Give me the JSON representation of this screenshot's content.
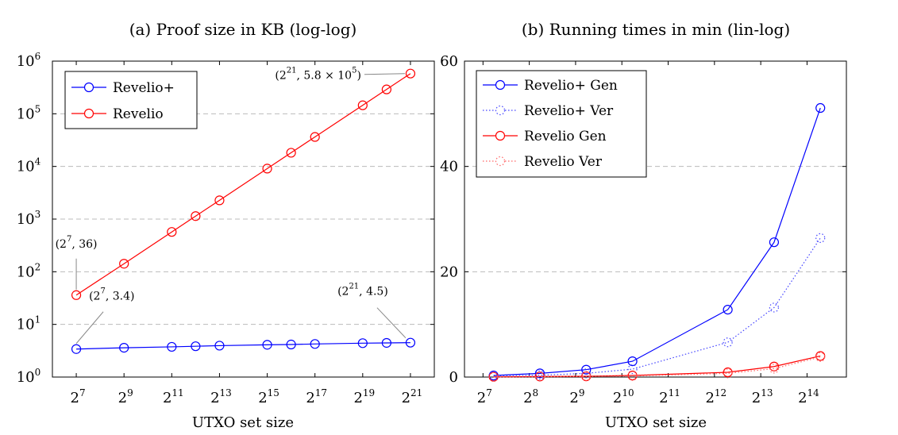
{
  "chart_data": [
    {
      "type": "line",
      "title": "(a) Proof size in KB (log-log)",
      "xlabel": "UTXO set size",
      "x_scale": "log2",
      "y_scale": "log10",
      "xlim_exp": [
        6,
        22
      ],
      "ylim": [
        1,
        1000000
      ],
      "grid": "horizontal dashed",
      "legend_position": "top-left",
      "x_ticks": [
        {
          "base": "2",
          "exp": "7",
          "value": 128
        },
        {
          "base": "2",
          "exp": "9",
          "value": 512
        },
        {
          "base": "2",
          "exp": "11",
          "value": 2048
        },
        {
          "base": "2",
          "exp": "13",
          "value": 8192
        },
        {
          "base": "2",
          "exp": "15",
          "value": 32768
        },
        {
          "base": "2",
          "exp": "17",
          "value": 131072
        },
        {
          "base": "2",
          "exp": "19",
          "value": 524288
        },
        {
          "base": "2",
          "exp": "21",
          "value": 2097152
        }
      ],
      "y_ticks": [
        {
          "base": "10",
          "exp": "0",
          "value": 1
        },
        {
          "base": "10",
          "exp": "1",
          "value": 10
        },
        {
          "base": "10",
          "exp": "2",
          "value": 100
        },
        {
          "base": "10",
          "exp": "3",
          "value": 1000
        },
        {
          "base": "10",
          "exp": "4",
          "value": 10000
        },
        {
          "base": "10",
          "exp": "5",
          "value": 100000
        },
        {
          "base": "10",
          "exp": "6",
          "value": 1000000
        }
      ],
      "series": [
        {
          "name": "Revelio+",
          "color": "#0000ff",
          "style": "solid",
          "x": [
            128,
            512,
            2048,
            4096,
            8192,
            32768,
            65536,
            131072,
            524288,
            1048576,
            2097152
          ],
          "y": [
            3.4,
            3.6,
            3.75,
            3.85,
            3.95,
            4.1,
            4.15,
            4.25,
            4.4,
            4.45,
            4.5
          ]
        },
        {
          "name": "Revelio",
          "color": "#ff0000",
          "style": "solid",
          "x": [
            128,
            512,
            2048,
            4096,
            8192,
            32768,
            65536,
            131072,
            524288,
            1048576,
            2097152
          ],
          "y": [
            36,
            142,
            570,
            1140,
            2270,
            9100,
            18200,
            36300,
            145000,
            290000,
            580000
          ]
        }
      ],
      "annotations": [
        {
          "id": "a1",
          "base": "(2",
          "exp": "7",
          "rest": ", 36)"
        },
        {
          "id": "a2",
          "base": "(2",
          "exp": "7",
          "rest": ", 3.4)"
        },
        {
          "id": "a3",
          "base": "(2",
          "exp": "21",
          "rest": ", 4.5)"
        },
        {
          "id": "a4",
          "base": "(2",
          "exp": "21",
          "rest": ", 5.8 × 10",
          "exp2": "5",
          "rest2": ")"
        }
      ]
    },
    {
      "type": "line",
      "title": "(b) Running times in min (lin-log)",
      "xlabel": "UTXO set size",
      "x_scale": "log2",
      "y_scale": "linear",
      "xlim_exp": [
        6.6,
        14.85
      ],
      "ylim": [
        0,
        60
      ],
      "grid": "horizontal dashed",
      "legend_position": "top-left",
      "x_ticks": [
        {
          "base": "2",
          "exp": "7",
          "value": 128
        },
        {
          "base": "2",
          "exp": "8",
          "value": 256
        },
        {
          "base": "2",
          "exp": "9",
          "value": 512
        },
        {
          "base": "2",
          "exp": "10",
          "value": 1024
        },
        {
          "base": "2",
          "exp": "11",
          "value": 2048
        },
        {
          "base": "2",
          "exp": "12",
          "value": 4096
        },
        {
          "base": "2",
          "exp": "13",
          "value": 8192
        },
        {
          "base": "2",
          "exp": "14",
          "value": 16384
        }
      ],
      "y_ticks": [
        {
          "label": "0",
          "value": 0
        },
        {
          "label": "20",
          "value": 20
        },
        {
          "label": "40",
          "value": 40
        },
        {
          "label": "60",
          "value": 60
        }
      ],
      "series": [
        {
          "name": "Revelio+ Gen",
          "color": "#0000ff",
          "style": "solid",
          "x": [
            150,
            300,
            600,
            1200,
            5000,
            10000,
            20000
          ],
          "y": [
            0.3,
            0.7,
            1.4,
            3.0,
            12.8,
            25.6,
            51.1
          ]
        },
        {
          "name": "Revelio+ Ver",
          "color": "#4444ff",
          "style": "dotted",
          "x": [
            150,
            300,
            600,
            1200,
            5000,
            10000,
            20000
          ],
          "y": [
            0.15,
            0.35,
            0.7,
            1.5,
            6.6,
            13.2,
            26.4
          ]
        },
        {
          "name": "Revelio Gen",
          "color": "#ff0000",
          "style": "solid",
          "x": [
            150,
            300,
            600,
            1200,
            5000,
            10000,
            20000
          ],
          "y": [
            0.05,
            0.1,
            0.15,
            0.3,
            0.9,
            2.0,
            4.0
          ]
        },
        {
          "name": "Revelio Ver",
          "color": "#ff6666",
          "style": "dotted",
          "x": [
            150,
            300,
            600,
            1200,
            5000,
            10000,
            20000
          ],
          "y": [
            0.03,
            0.06,
            0.1,
            0.2,
            0.7,
            1.6,
            3.8
          ]
        }
      ]
    }
  ]
}
